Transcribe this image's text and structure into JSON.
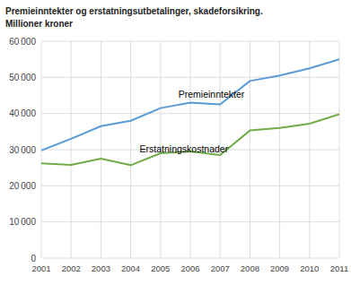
{
  "chart_data": {
    "type": "line",
    "title": "Premieinntekter og erstatningsutbetalinger, skadeforsikring.",
    "subtitle": "Millioner kroner",
    "x": [
      2001,
      2002,
      2003,
      2004,
      2005,
      2006,
      2007,
      2008,
      2009,
      2010,
      2011
    ],
    "series": [
      {
        "name": "Premieinntekter",
        "color": "#5b9bd5",
        "values": [
          29800,
          33000,
          36500,
          38000,
          41500,
          43000,
          42500,
          49000,
          50500,
          52500,
          55000
        ]
      },
      {
        "name": "Erstatningskostnader",
        "color": "#70ad47",
        "values": [
          26200,
          25800,
          27500,
          25700,
          29000,
          29500,
          28500,
          35300,
          36000,
          37200,
          39800
        ]
      }
    ],
    "xlim": [
      2001,
      2011
    ],
    "xticks": [
      2001,
      2002,
      2003,
      2004,
      2005,
      2006,
      2007,
      2008,
      2009,
      2010,
      2011
    ],
    "ylim": [
      0,
      60000
    ],
    "yticks": [
      0,
      {
        "value": 10000,
        "label": "10 000"
      },
      {
        "value": 20000,
        "label": "20 000"
      },
      {
        "value": 30000,
        "label": "30 000"
      },
      {
        "value": 40000,
        "label": "40 000"
      },
      {
        "value": 50000,
        "label": "50 000"
      },
      {
        "value": 60000,
        "label": "60 000"
      }
    ],
    "grid": true
  }
}
